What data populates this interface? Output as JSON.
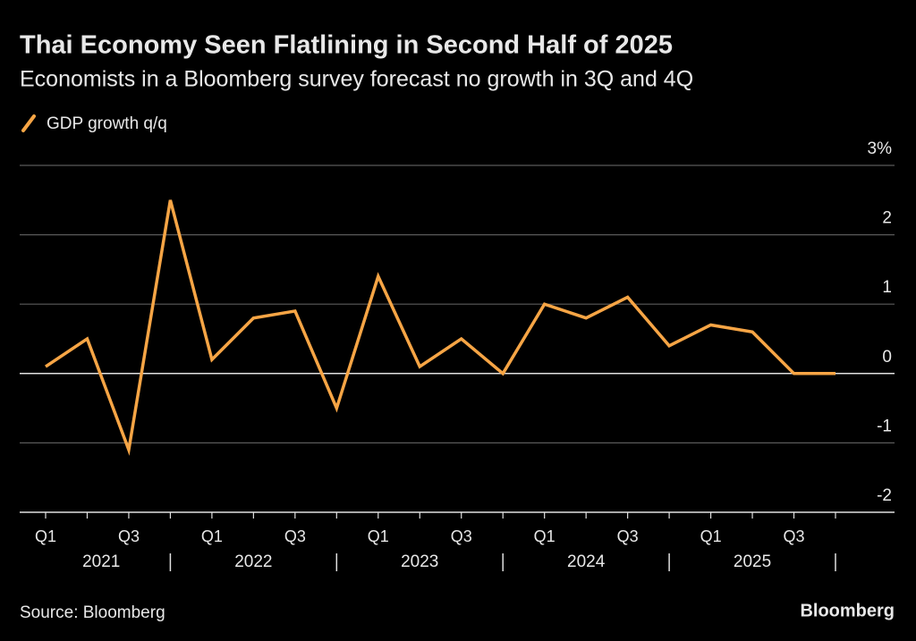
{
  "chart_data": {
    "type": "line",
    "title": "Thai Economy Seen Flatlining in Second Half of 2025",
    "subtitle": "Economists in a Bloomberg survey forecast no growth in 3Q and 4Q",
    "categories": [
      "Q1",
      null,
      "Q3",
      null,
      "Q1",
      null,
      "Q3",
      null,
      "Q1",
      null,
      "Q3",
      null,
      "Q1",
      null,
      "Q3",
      null,
      "Q1",
      null,
      "Q3",
      null
    ],
    "years": [
      "2021",
      "2022",
      "2023",
      "2024",
      "2025"
    ],
    "series": [
      {
        "name": "GDP growth q/q",
        "color": "#f7a545",
        "values": [
          0.1,
          0.5,
          -1.1,
          2.5,
          0.2,
          0.8,
          0.9,
          -0.5,
          1.4,
          0.1,
          0.5,
          0.0,
          1.0,
          0.8,
          1.1,
          0.4,
          0.7,
          0.6,
          0.0,
          0.0
        ]
      }
    ],
    "ylim": [
      -2,
      3
    ],
    "yticks": [
      -2,
      -1,
      0,
      1,
      2,
      {
        "value": 3,
        "label": "3%"
      }
    ],
    "grid": true
  },
  "footer": {
    "source": "Source: Bloomberg",
    "brand": "Bloomberg"
  }
}
